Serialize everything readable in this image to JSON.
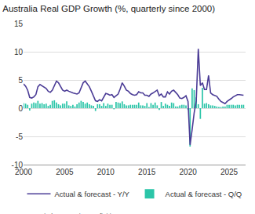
{
  "chart_data": {
    "type": "line",
    "title": "Australia Real GDP Growth (%, quarterly since 2000)",
    "source": "Source: Capital Economics, Refinitiv.",
    "x": [
      2000,
      2000.25,
      2000.5,
      2000.75,
      2001,
      2001.25,
      2001.5,
      2001.75,
      2002,
      2002.25,
      2002.5,
      2002.75,
      2003,
      2003.25,
      2003.5,
      2003.75,
      2004,
      2004.25,
      2004.5,
      2004.75,
      2005,
      2005.25,
      2005.5,
      2005.75,
      2006,
      2006.25,
      2006.5,
      2006.75,
      2007,
      2007.25,
      2007.5,
      2007.75,
      2008,
      2008.25,
      2008.5,
      2008.75,
      2009,
      2009.25,
      2009.5,
      2009.75,
      2010,
      2010.25,
      2010.5,
      2010.75,
      2011,
      2011.25,
      2011.5,
      2011.75,
      2012,
      2012.25,
      2012.5,
      2012.75,
      2013,
      2013.25,
      2013.5,
      2013.75,
      2014,
      2014.25,
      2014.5,
      2014.75,
      2015,
      2015.25,
      2015.5,
      2015.75,
      2016,
      2016.25,
      2016.5,
      2016.75,
      2017,
      2017.25,
      2017.5,
      2017.75,
      2018,
      2018.25,
      2018.5,
      2018.75,
      2019,
      2019.25,
      2019.5,
      2019.75,
      2020,
      2020.25,
      2020.5,
      2020.75,
      2021,
      2021.25,
      2021.5,
      2021.75,
      2022,
      2022.25,
      2022.5,
      2022.75,
      2023,
      2023.25,
      2023.5,
      2023.75,
      2024,
      2024.25,
      2024.5,
      2024.75,
      2025,
      2025.25,
      2025.5,
      2025.75,
      2026,
      2026.25,
      2026.5,
      2026.75
    ],
    "series": [
      {
        "name": "Actual & forecast - Y/Y",
        "type": "line",
        "color": "#4b3c96",
        "values": [
          4.3,
          3.9,
          3.2,
          1.9,
          1.8,
          2.0,
          2.4,
          3.8,
          4.2,
          4.0,
          3.8,
          3.5,
          3.0,
          2.8,
          3.2,
          4.0,
          4.8,
          4.5,
          3.8,
          3.2,
          3.0,
          3.2,
          3.0,
          2.8,
          2.7,
          2.6,
          2.5,
          2.7,
          3.5,
          4.5,
          4.8,
          4.3,
          3.8,
          3.0,
          2.2,
          1.3,
          1.2,
          1.5,
          1.3,
          2.0,
          2.6,
          2.5,
          2.3,
          2.4,
          1.9,
          2.2,
          2.5,
          3.4,
          4.5,
          3.9,
          3.2,
          3.0,
          2.6,
          2.4,
          2.3,
          2.4,
          2.9,
          2.7,
          2.7,
          2.3,
          2.3,
          2.1,
          2.5,
          2.7,
          3.0,
          3.2,
          2.2,
          2.5,
          2.0,
          2.0,
          2.9,
          2.5,
          3.0,
          3.2,
          2.8,
          2.4,
          1.8,
          1.7,
          1.9,
          2.2,
          1.2,
          -6.5,
          -3.8,
          -0.8,
          1.3,
          10.5,
          4.0,
          4.5,
          3.3,
          3.3,
          5.8,
          2.7,
          2.4,
          2.2,
          2.1,
          1.6,
          1.2,
          1.0,
          0.8,
          1.2,
          1.4,
          1.7,
          2.0,
          2.2,
          2.4,
          2.4,
          2.4,
          2.3
        ]
      },
      {
        "name": "Actual & forecast - Q/Q",
        "type": "bar",
        "color": "#2bc5a8",
        "values": [
          0.9,
          0.8,
          0.6,
          -0.4,
          0.8,
          1.0,
          0.9,
          1.3,
          0.8,
          0.9,
          0.7,
          0.8,
          0.4,
          0.6,
          1.3,
          1.4,
          1.0,
          0.7,
          0.5,
          0.8,
          0.8,
          1.2,
          0.5,
          0.4,
          0.6,
          0.3,
          0.7,
          1.0,
          1.3,
          1.1,
          0.8,
          1.0,
          0.7,
          0.5,
          0.4,
          -0.5,
          0.7,
          0.7,
          0.4,
          0.9,
          0.4,
          0.8,
          0.6,
          0.6,
          -0.2,
          1.1,
          1.0,
          0.9,
          1.2,
          0.7,
          0.5,
          0.5,
          0.6,
          0.6,
          0.6,
          0.6,
          1.0,
          0.5,
          0.5,
          0.4,
          0.9,
          0.2,
          0.9,
          0.6,
          1.0,
          0.5,
          -0.3,
          1.1,
          0.4,
          0.8,
          0.6,
          0.4,
          1.0,
          0.9,
          0.3,
          0.3,
          0.5,
          0.6,
          0.6,
          0.5,
          -0.3,
          -6.8,
          3.5,
          3.2,
          1.9,
          0.7,
          -1.9,
          3.6,
          0.8,
          0.9,
          0.7,
          0.5,
          0.5,
          0.4,
          0.3,
          0.2,
          0.2,
          0.3,
          0.3,
          0.6,
          0.6,
          0.6,
          0.6,
          0.5,
          0.6,
          0.6,
          0.6,
          0.6
        ]
      }
    ],
    "xlim": [
      2000,
      2027
    ],
    "xticks": [
      2000,
      2005,
      2010,
      2015,
      2020,
      2025
    ],
    "ylim": [
      -10,
      15
    ],
    "yticks": [
      -10,
      -5,
      0,
      5,
      10,
      15
    ],
    "grid": true,
    "legend": "bottom"
  }
}
